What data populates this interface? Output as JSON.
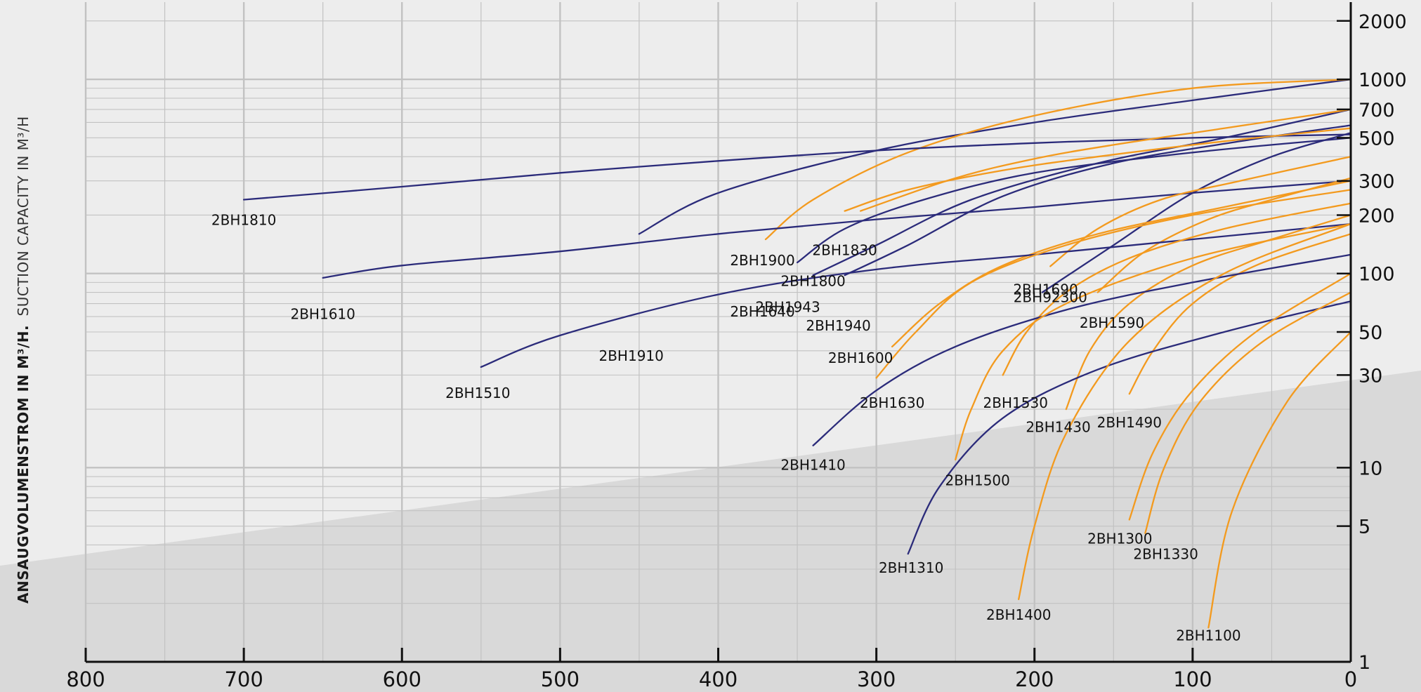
{
  "chart_data": {
    "type": "line",
    "title": "",
    "ylabel_bold": "ANSAUGVOLUMENSTROM IN M³/H.",
    "ylabel_regular": "SUCTION CAPACITY IN M³/H",
    "xlabel": "",
    "x_scale": "linear",
    "y_scale": "log",
    "xlim": [
      800,
      0
    ],
    "ylim": [
      1,
      2500
    ],
    "grid": true,
    "legend": "none",
    "x_ticks": [
      800,
      700,
      600,
      500,
      400,
      300,
      200,
      100,
      0
    ],
    "y_ticks": [
      1,
      5,
      10,
      30,
      50,
      100,
      200,
      300,
      500,
      700,
      1000,
      2000
    ],
    "colors": {
      "navy": "#2b2b7a",
      "orange": "#f39a1e",
      "background": "#ededed",
      "shade": "#d9d9d9",
      "grid": "#c2c2c2",
      "axis": "#111111"
    },
    "series": [
      {
        "name": "2BH1943",
        "color": "navy",
        "x": [
          340,
          300,
          240,
          160,
          80,
          0
        ],
        "y": [
          98,
          140,
          240,
          370,
          500,
          700
        ]
      },
      {
        "name": "2BH1940",
        "color": "navy",
        "x": [
          320,
          280,
          220,
          150,
          70,
          0
        ],
        "y": [
          98,
          140,
          250,
          370,
          480,
          580
        ]
      },
      {
        "name": "2BH92300",
        "color": "navy",
        "x": [
          195,
          150,
          100,
          50,
          0
        ],
        "y": [
          80,
          140,
          260,
          400,
          530
        ]
      },
      {
        "name": "2BH1910",
        "color": "navy",
        "x": [
          450,
          400,
          300,
          200,
          100,
          0
        ],
        "y": [
          160,
          260,
          430,
          600,
          780,
          1000
        ]
      },
      {
        "name": "2BH1900",
        "color": "orange",
        "x": [
          370,
          340,
          280,
          200,
          100,
          0
        ],
        "y": [
          150,
          240,
          420,
          650,
          900,
          1000
        ]
      },
      {
        "name": "2BH1810",
        "color": "navy",
        "x": [
          700,
          600,
          500,
          400,
          300,
          200,
          100,
          0
        ],
        "y": [
          240,
          280,
          330,
          380,
          430,
          470,
          500,
          520
        ]
      },
      {
        "name": "2BH1830",
        "color": "orange",
        "x": [
          310,
          250,
          200,
          150,
          80,
          0
        ],
        "y": [
          210,
          310,
          390,
          460,
          560,
          700
        ]
      },
      {
        "name": "2BH1800",
        "color": "orange",
        "x": [
          320,
          280,
          220,
          160,
          80,
          0
        ],
        "y": [
          210,
          270,
          340,
          400,
          480,
          560
        ]
      },
      {
        "name": "2BH1640",
        "color": "navy",
        "x": [
          350,
          320,
          270,
          200,
          100,
          0
        ],
        "y": [
          114,
          170,
          240,
          330,
          420,
          500
        ]
      },
      {
        "name": "2BH1610",
        "color": "navy",
        "x": [
          650,
          600,
          500,
          400,
          300,
          200,
          100,
          0
        ],
        "y": [
          95,
          110,
          130,
          160,
          190,
          220,
          260,
          300
        ]
      },
      {
        "name": "2BH1690",
        "color": "orange",
        "x": [
          190,
          160,
          120,
          70,
          0
        ],
        "y": [
          109,
          170,
          240,
          300,
          400
        ]
      },
      {
        "name": "2BH1590",
        "color": "orange",
        "x": [
          160,
          130,
          90,
          50,
          0
        ],
        "y": [
          80,
          130,
          190,
          240,
          310
        ]
      },
      {
        "name": "2BH1600",
        "color": "orange",
        "x": [
          290,
          260,
          220,
          160,
          80,
          0
        ],
        "y": [
          42,
          70,
          110,
          160,
          220,
          300
        ]
      },
      {
        "name": "2BH1510",
        "color": "navy",
        "x": [
          550,
          500,
          400,
          300,
          200,
          100,
          0
        ],
        "y": [
          33,
          48,
          78,
          105,
          125,
          150,
          180
        ]
      },
      {
        "name": "2BH1630",
        "color": "orange",
        "x": [
          300,
          275,
          240,
          180,
          100,
          0
        ],
        "y": [
          29,
          50,
          90,
          140,
          200,
          270
        ]
      },
      {
        "name": "2BH1530",
        "color": "orange",
        "x": [
          220,
          205,
          180,
          140,
          80,
          0
        ],
        "y": [
          30,
          50,
          80,
          120,
          170,
          230
        ]
      },
      {
        "name": "2BH1430",
        "color": "orange",
        "x": [
          180,
          165,
          140,
          100,
          50,
          0
        ],
        "y": [
          20,
          40,
          70,
          110,
          150,
          200
        ]
      },
      {
        "name": "2BH1490",
        "color": "orange",
        "x": [
          140,
          125,
          100,
          60,
          0
        ],
        "y": [
          24,
          40,
          70,
          110,
          160
        ]
      },
      {
        "name": "2BH1410",
        "color": "navy",
        "x": [
          340,
          300,
          250,
          180,
          100,
          0
        ],
        "y": [
          13,
          25,
          42,
          65,
          90,
          125
        ]
      },
      {
        "name": "2BH1500",
        "color": "orange",
        "x": [
          250,
          240,
          220,
          180,
          100,
          0
        ],
        "y": [
          11,
          20,
          40,
          70,
          120,
          180
        ]
      },
      {
        "name": "2BH1310",
        "color": "navy",
        "x": [
          280,
          260,
          220,
          160,
          80,
          0
        ],
        "y": [
          3.6,
          8,
          18,
          32,
          50,
          72
        ]
      },
      {
        "name": "2BH1400",
        "color": "orange",
        "x": [
          210,
          200,
          180,
          140,
          80,
          0
        ],
        "y": [
          2.1,
          5,
          15,
          45,
          100,
          180
        ]
      },
      {
        "name": "2BH1300",
        "color": "orange",
        "x": [
          140,
          125,
          100,
          60,
          0
        ],
        "y": [
          5.4,
          12,
          25,
          50,
          100
        ]
      },
      {
        "name": "2BH1330",
        "color": "orange",
        "x": [
          130,
          118,
          95,
          55,
          0
        ],
        "y": [
          4.6,
          10,
          22,
          45,
          80
        ]
      },
      {
        "name": "2BH1100",
        "color": "orange",
        "x": [
          90,
          75,
          40,
          0
        ],
        "y": [
          1.5,
          6,
          22,
          50
        ]
      }
    ],
    "labels": [
      {
        "name": "2BH1943",
        "x": 356,
        "y": 75
      },
      {
        "name": "2BH1940",
        "x": 324,
        "y": 60
      },
      {
        "name": "2BH92300",
        "x": 190,
        "y": 84
      },
      {
        "name": "2BH1910",
        "x": 455,
        "y": 42
      },
      {
        "name": "2BH1900",
        "x": 372,
        "y": 130
      },
      {
        "name": "2BH1810",
        "x": 700,
        "y": 210
      },
      {
        "name": "2BH1830",
        "x": 320,
        "y": 147
      },
      {
        "name": "2BH1800",
        "x": 340,
        "y": 102
      },
      {
        "name": "2BH1640",
        "x": 372,
        "y": 71
      },
      {
        "name": "2BH1610",
        "x": 650,
        "y": 69
      },
      {
        "name": "2BH1690",
        "x": 193,
        "y": 92
      },
      {
        "name": "2BH1590",
        "x": 151,
        "y": 62
      },
      {
        "name": "2BH1600",
        "x": 310,
        "y": 41
      },
      {
        "name": "2BH1510",
        "x": 552,
        "y": 27
      },
      {
        "name": "2BH1630",
        "x": 290,
        "y": 24
      },
      {
        "name": "2BH1530",
        "x": 212,
        "y": 24
      },
      {
        "name": "2BH1430",
        "x": 185,
        "y": 18
      },
      {
        "name": "2BH1490",
        "x": 140,
        "y": 19
      },
      {
        "name": "2BH1410",
        "x": 340,
        "y": 11.5
      },
      {
        "name": "2BH1500",
        "x": 236,
        "y": 9.6
      },
      {
        "name": "2BH1310",
        "x": 278,
        "y": 3.4
      },
      {
        "name": "2BH1400",
        "x": 210,
        "y": 1.95
      },
      {
        "name": "2BH1300",
        "x": 146,
        "y": 4.8
      },
      {
        "name": "2BH1330",
        "x": 117,
        "y": 4.0
      },
      {
        "name": "2BH1100",
        "x": 90,
        "y": 1.52
      }
    ]
  }
}
